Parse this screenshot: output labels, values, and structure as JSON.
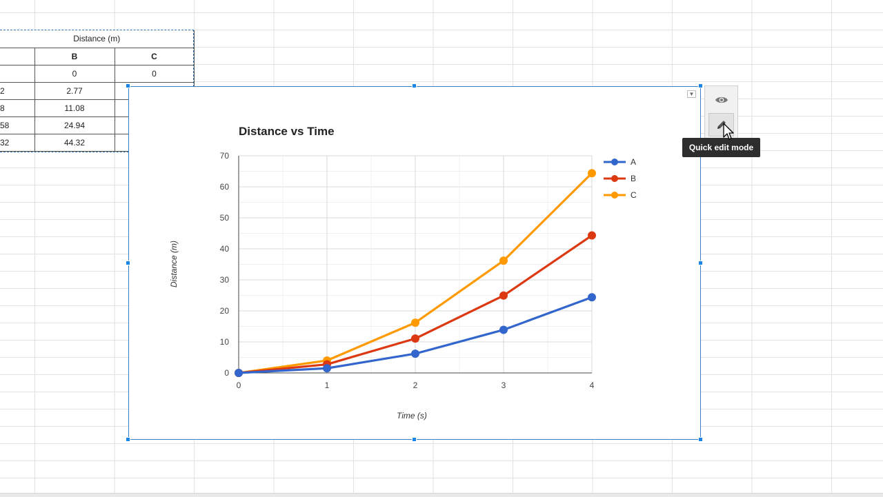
{
  "table": {
    "title": "Distance (m)",
    "headers": [
      "",
      "B",
      "C"
    ],
    "rows": [
      [
        "",
        "0",
        "0"
      ],
      [
        "2",
        "2.77",
        ""
      ],
      [
        "8",
        "11.08",
        ""
      ],
      [
        "58",
        "24.94",
        ""
      ],
      [
        "32",
        "44.32",
        ""
      ]
    ]
  },
  "chart_panel": {
    "eye_icon": "eye-icon",
    "pencil_icon": "pencil-icon",
    "tooltip": "Quick edit mode",
    "menu_icon": "dropdown-triangle-icon"
  },
  "chart_data": {
    "type": "line",
    "title": "Distance vs Time",
    "xlabel": "Time (s)",
    "ylabel": "Distance (m)",
    "x": [
      0,
      1,
      2,
      3,
      4
    ],
    "xlim": [
      0,
      4
    ],
    "ylim": [
      0,
      70
    ],
    "yticks": [
      0,
      10,
      20,
      30,
      40,
      50,
      60,
      70
    ],
    "xticks": [
      0,
      1,
      2,
      3,
      4
    ],
    "grid": true,
    "legend_position": "right",
    "series": [
      {
        "name": "A",
        "color": "#3366cc",
        "values": [
          0,
          1.5,
          6.2,
          13.9,
          24.4
        ]
      },
      {
        "name": "B",
        "color": "#dc3912",
        "values": [
          0,
          2.77,
          11.08,
          24.94,
          44.32
        ]
      },
      {
        "name": "C",
        "color": "#ff9900",
        "values": [
          0,
          4.0,
          16.2,
          36.2,
          64.4
        ]
      }
    ]
  }
}
